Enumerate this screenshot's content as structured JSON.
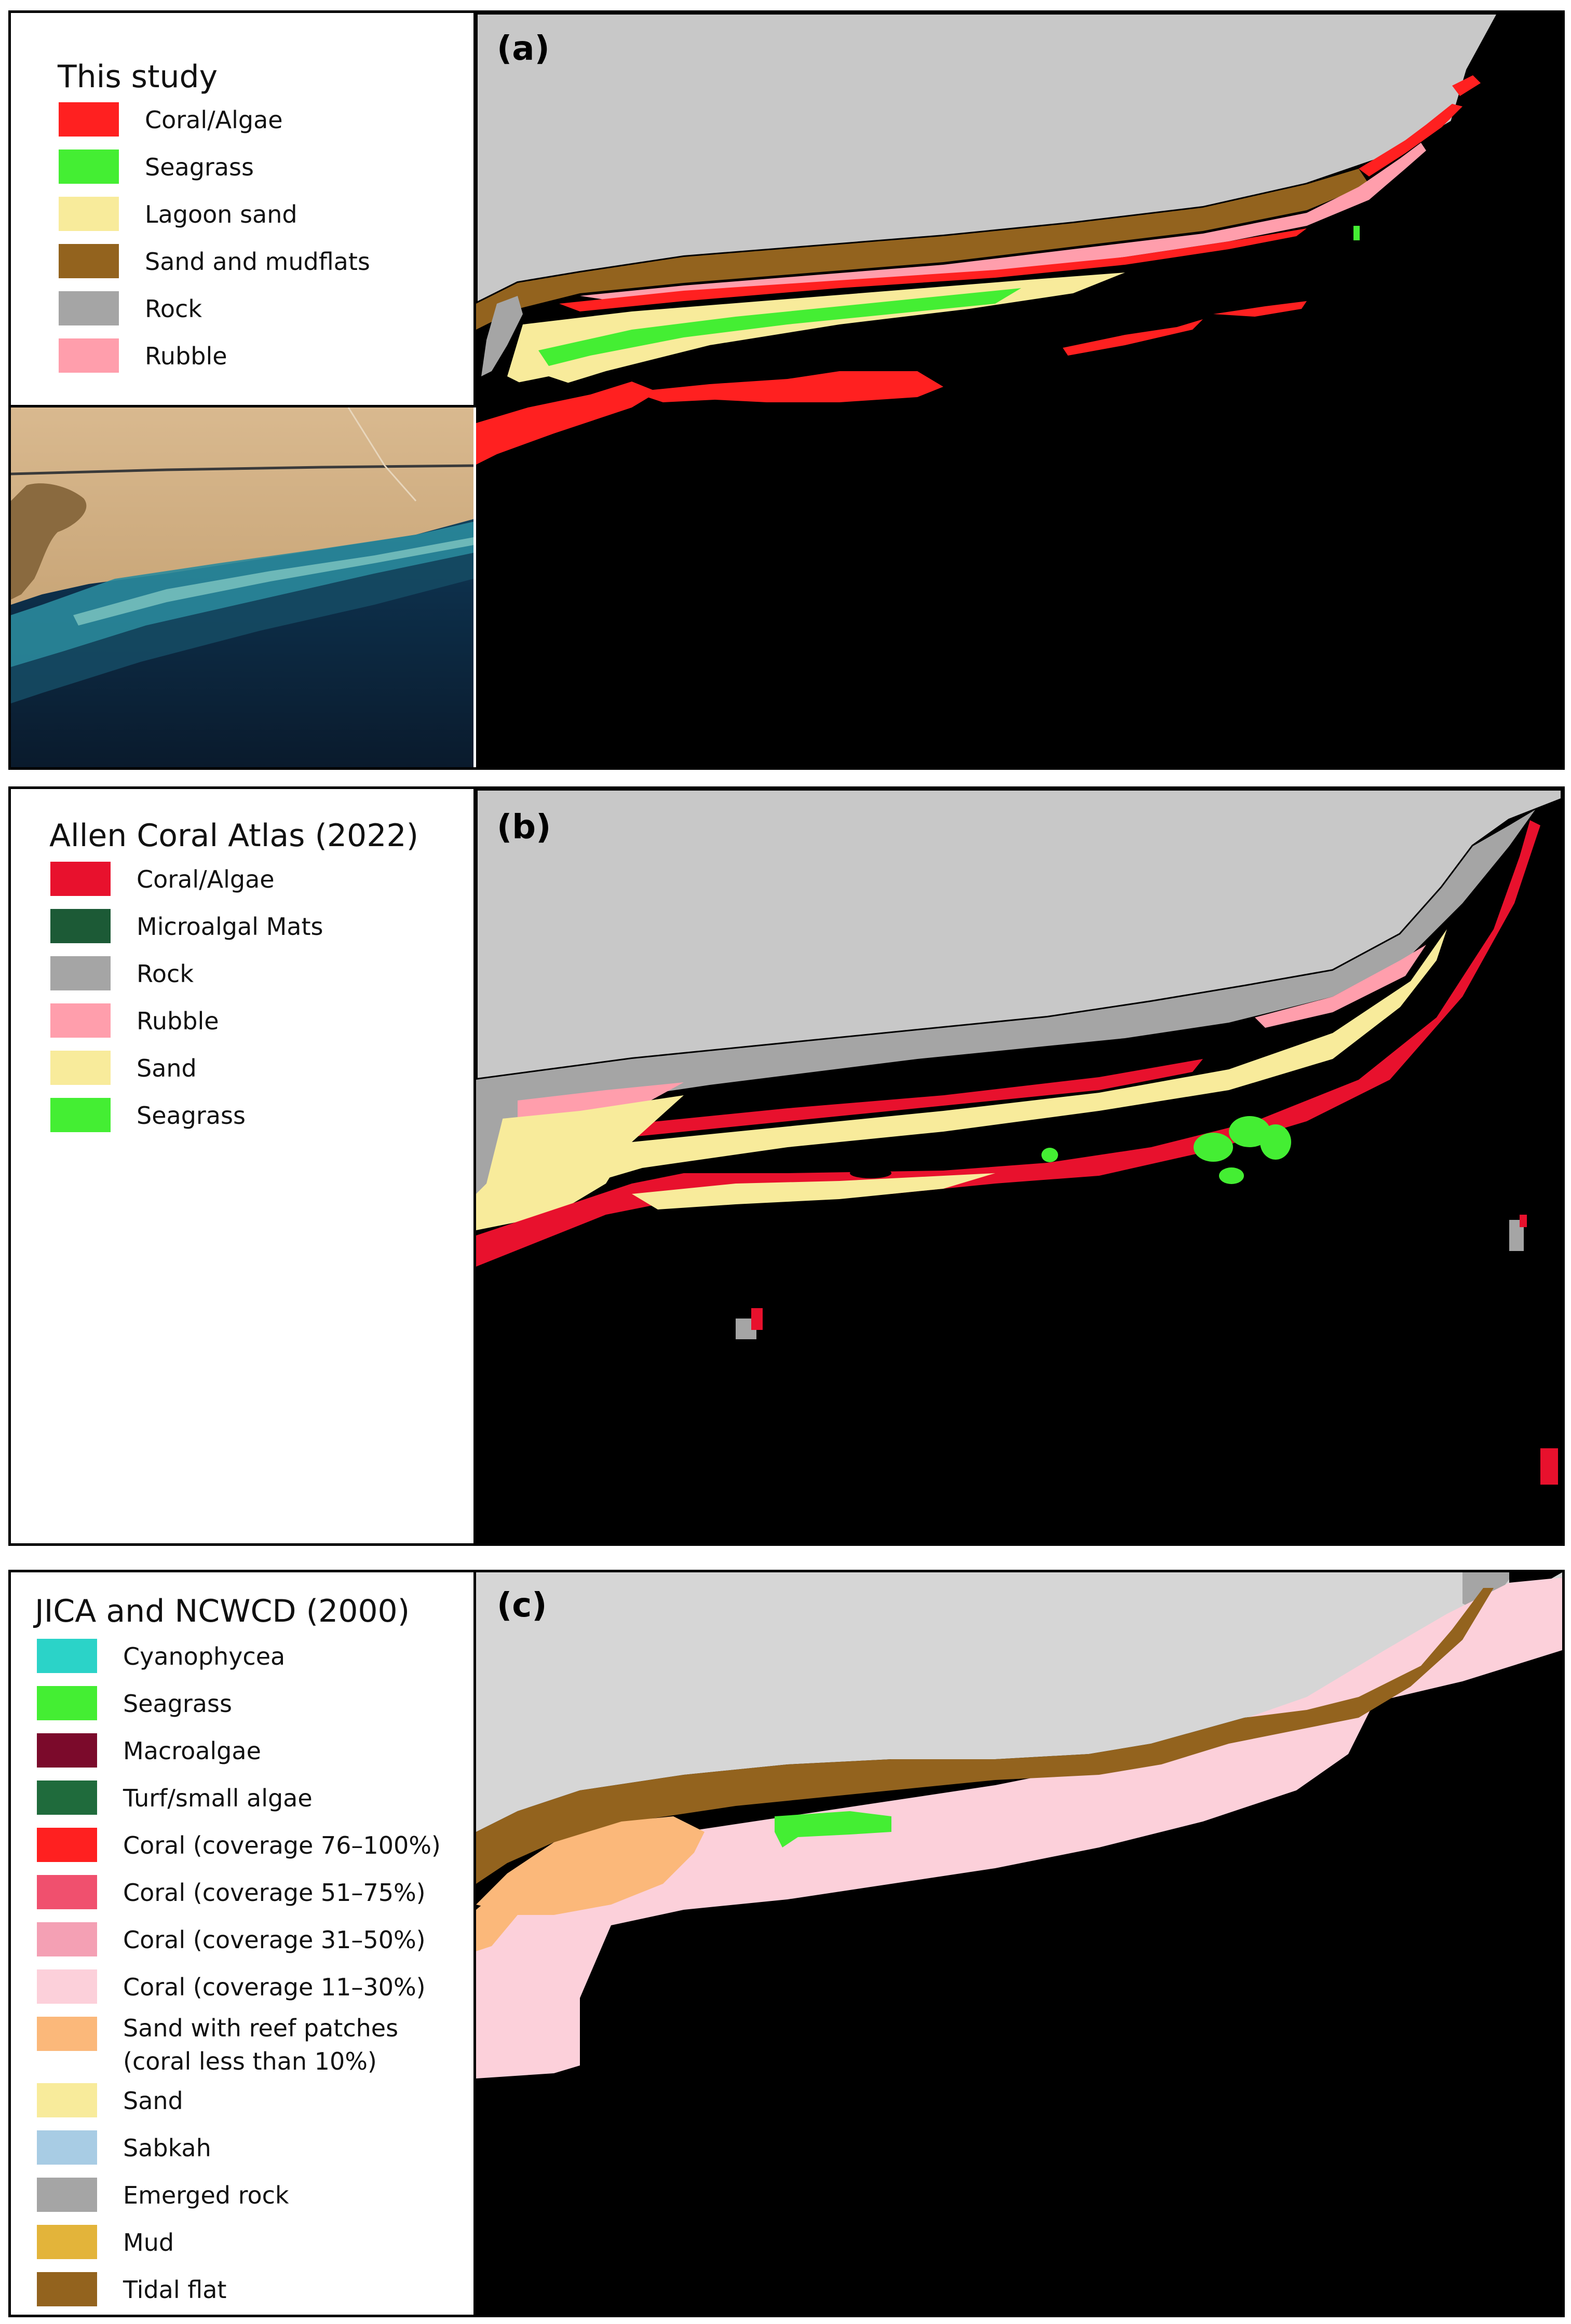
{
  "panel_a": {
    "letter": "(a)",
    "legend_title": "This study",
    "items": [
      {
        "label": "Coral/Algae",
        "color": "#ff2020"
      },
      {
        "label": "Seagrass",
        "color": "#44ee33"
      },
      {
        "label": "Lagoon sand",
        "color": "#f8eb9b"
      },
      {
        "label": "Sand and mudflats",
        "color": "#93631e"
      },
      {
        "label": "Rock",
        "color": "#a5a5a5"
      },
      {
        "label": "Rubble",
        "color": "#ff9eac"
      }
    ]
  },
  "panel_b": {
    "letter": "(b)",
    "legend_title": "Allen Coral Atlas (2022)",
    "items": [
      {
        "label": "Coral/Algae",
        "color": "#e8112d"
      },
      {
        "label": "Microalgal Mats",
        "color": "#1c5a36"
      },
      {
        "label": "Rock",
        "color": "#a5a5a5"
      },
      {
        "label": "Rubble",
        "color": "#ff9eac"
      },
      {
        "label": "Sand",
        "color": "#f8eb9b"
      },
      {
        "label": "Seagrass",
        "color": "#44ee33"
      }
    ]
  },
  "panel_c": {
    "letter": "(c)",
    "legend_title": "JICA and NCWCD (2000)",
    "items": [
      {
        "label": "Cyanophycea",
        "color": "#2bd3c8"
      },
      {
        "label": "Seagrass",
        "color": "#44ee33"
      },
      {
        "label": "Macroalgae",
        "color": "#7b0a2b"
      },
      {
        "label": "Turf/small algae",
        "color": "#1f6b3c"
      },
      {
        "label": "Coral (coverage 76–100%)",
        "color": "#ff2020"
      },
      {
        "label": "Coral (coverage 51–75%)",
        "color": "#f0506e"
      },
      {
        "label": "Coral (coverage 31–50%)",
        "color": "#f4a0b4"
      },
      {
        "label": "Coral (coverage 11–30%)",
        "color": "#fcd0da"
      },
      {
        "label": "Sand with reef patches",
        "label2": "(coral less than 10%)",
        "color": "#fbb87a"
      },
      {
        "label": "Sand",
        "color": "#f8eb9b"
      },
      {
        "label": "Sabkah",
        "color": "#a8cce4"
      },
      {
        "label": "Emerged rock",
        "color": "#a5a5a5"
      },
      {
        "label": "Mud",
        "color": "#e3b43a"
      },
      {
        "label": "Tidal flat",
        "color": "#93631e"
      }
    ]
  },
  "colors": {
    "land": "#c8c8c8",
    "land_c": "#d6d6d6",
    "sea": "#000000"
  }
}
